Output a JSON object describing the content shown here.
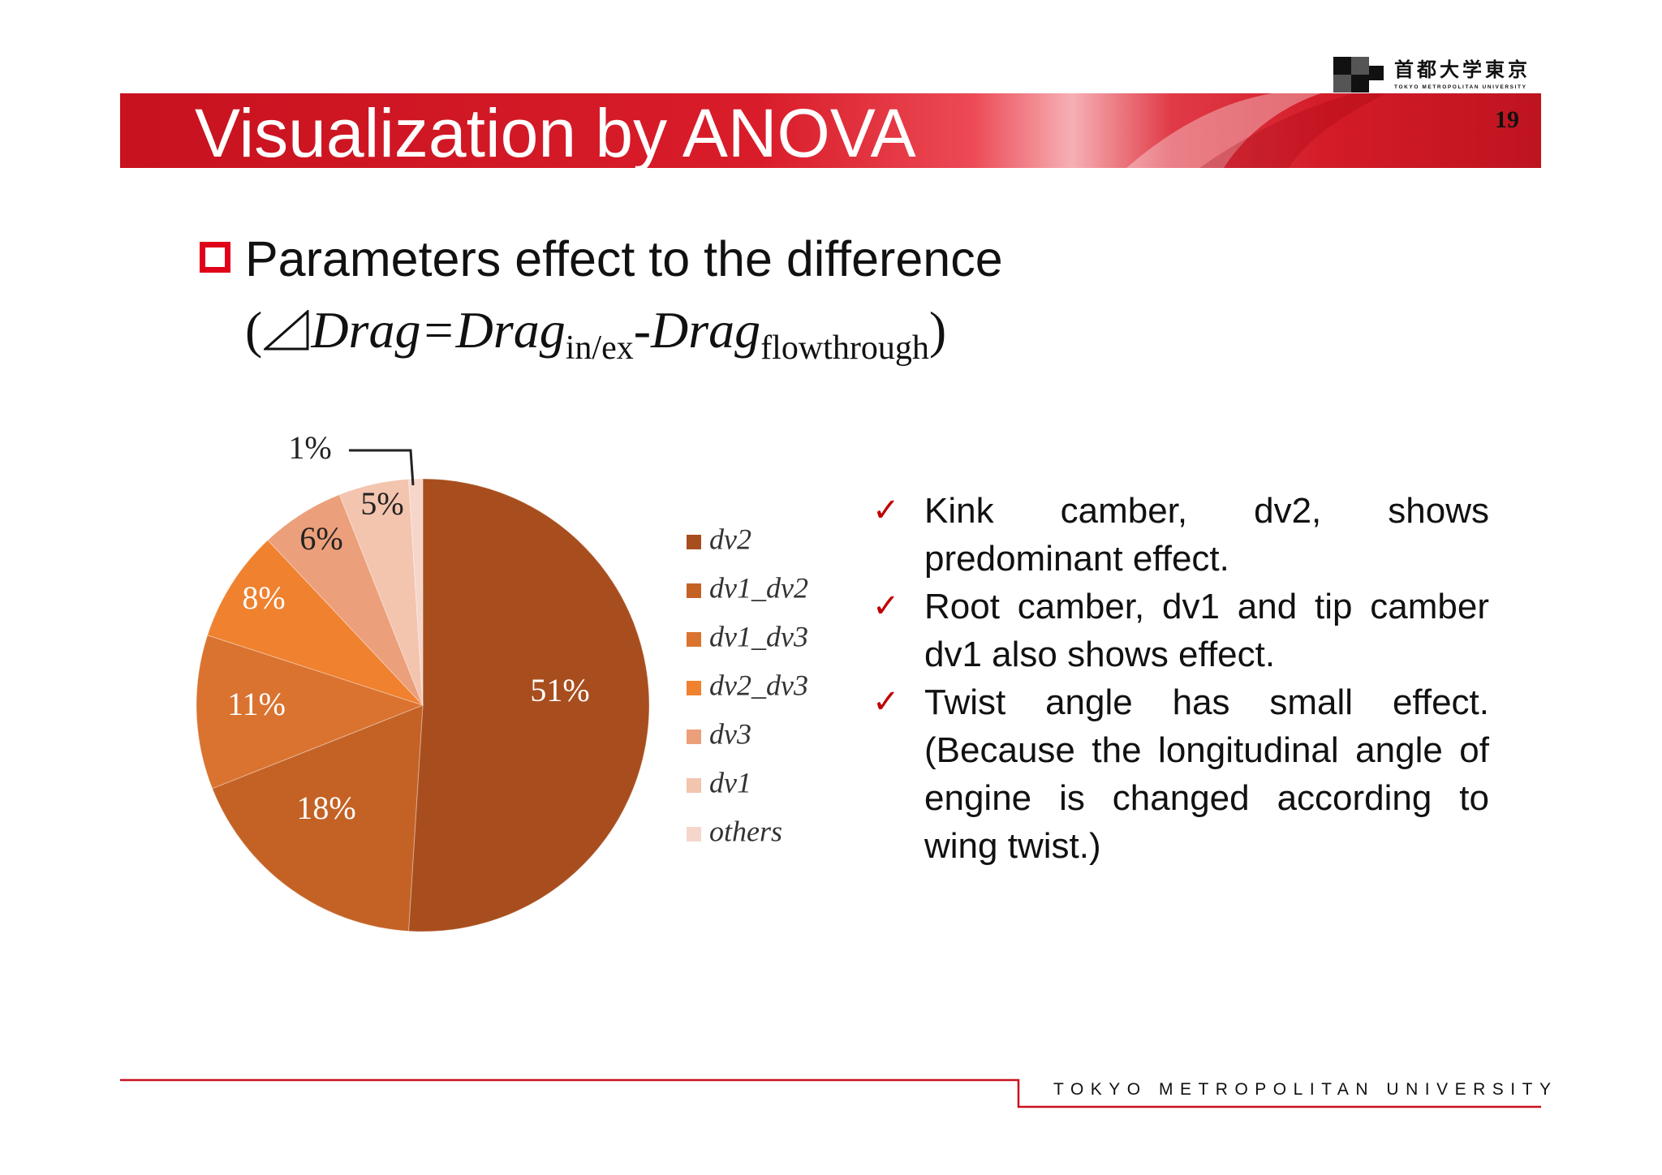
{
  "header": {
    "title": "Visualization by ANOVA",
    "page_number": "19",
    "logo": {
      "name_jp": "首都大学東京",
      "name_en": "TOKYO METROPOLITAN UNIVERSITY"
    }
  },
  "section": {
    "heading": "Parameters effect to the difference",
    "formula": {
      "open": "(",
      "delta_icon": "triangle-delta",
      "part1": "Drag=Drag",
      "sub1": "in/ex",
      "part2": "-Drag",
      "sub2": "flowthrough",
      "close": ")"
    }
  },
  "chart_data": {
    "type": "pie",
    "categories": [
      "dv2",
      "dv1_dv2",
      "dv1_dv3",
      "dv2_dv3",
      "dv3",
      "dv1",
      "others"
    ],
    "values": [
      51,
      18,
      11,
      8,
      6,
      5,
      1
    ],
    "labels": [
      "51%",
      "18%",
      "11%",
      "8%",
      "6%",
      "5%",
      "1%"
    ],
    "colors": [
      "#a84e1e",
      "#c46226",
      "#da7330",
      "#ef812f",
      "#eb9f7a",
      "#f3c4ae",
      "#f6d6cb"
    ],
    "legend_position": "right"
  },
  "bullets": [
    {
      "text": "Kink camber, dv2, shows predominant effect."
    },
    {
      "text": "Root camber, dv1 and tip camber dv1 also shows effect."
    },
    {
      "text": "Twist angle has small effect. (Because the longitudinal angle of engine is changed according to wing twist.)"
    }
  ],
  "footer": {
    "text": "TOKYO METROPOLITAN UNIVERSITY"
  },
  "colors": {
    "accent": "#d7121f",
    "bullet_check": "#c00000"
  }
}
